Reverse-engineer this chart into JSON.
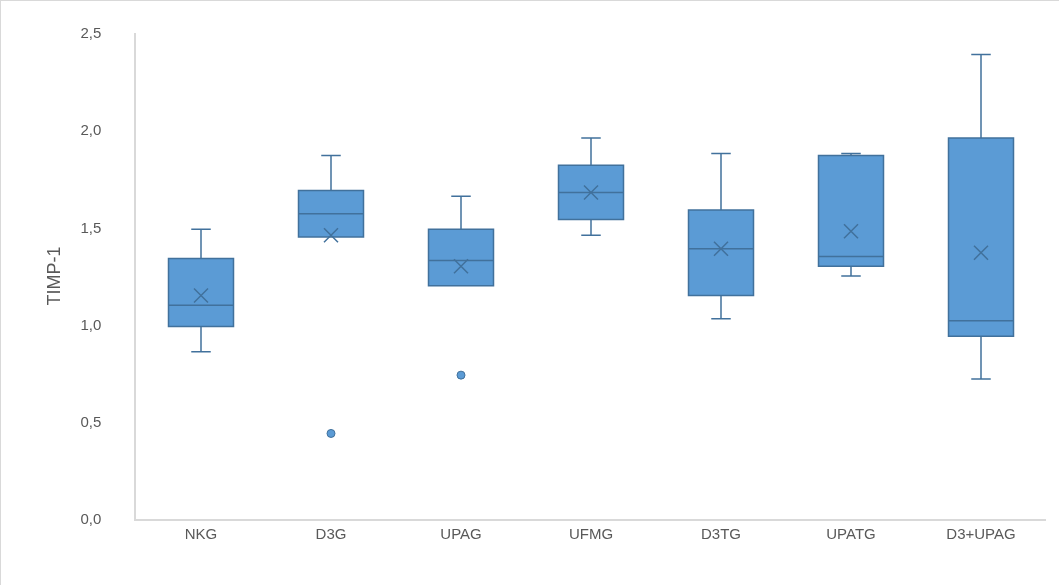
{
  "chart_data": {
    "type": "box",
    "ylabel": "TIMP-1",
    "categories": [
      "NKG",
      "D3G",
      "UPAG",
      "UFMG",
      "D3TG",
      "UPATG",
      "D3+UPAG"
    ],
    "color": "#5b9bd5",
    "ylim": [
      0,
      2.5
    ],
    "yticks": [
      {
        "value": 0,
        "label": "0,0"
      },
      {
        "value": 0.5,
        "label": "0,5"
      },
      {
        "value": 1,
        "label": "1,0"
      },
      {
        "value": 1.5,
        "label": "1,5"
      },
      {
        "value": 2,
        "label": "2,0"
      },
      {
        "value": 2.5,
        "label": "2,5"
      }
    ],
    "boxes": [
      {
        "low": 0.86,
        "q1": 0.99,
        "median": 1.1,
        "q3": 1.34,
        "high": 1.49,
        "mean": 1.15
      },
      {
        "low": 1.45,
        "q1": 1.45,
        "median": 1.57,
        "q3": 1.69,
        "high": 1.87,
        "mean": 1.46,
        "outliers": [
          0.44
        ]
      },
      {
        "low": 1.2,
        "q1": 1.2,
        "median": 1.33,
        "q3": 1.49,
        "high": 1.66,
        "mean": 1.3,
        "outliers": [
          0.74
        ]
      },
      {
        "low": 1.46,
        "q1": 1.54,
        "median": 1.68,
        "q3": 1.82,
        "high": 1.96,
        "mean": 1.68
      },
      {
        "low": 1.03,
        "q1": 1.15,
        "median": 1.39,
        "q3": 1.59,
        "high": 1.88,
        "mean": 1.39
      },
      {
        "low": 1.25,
        "q1": 1.3,
        "median": 1.35,
        "q3": 1.87,
        "high": 1.88,
        "mean": 1.48
      },
      {
        "low": 0.72,
        "q1": 0.94,
        "median": 1.02,
        "q3": 1.96,
        "high": 2.39,
        "mean": 1.37
      }
    ]
  }
}
